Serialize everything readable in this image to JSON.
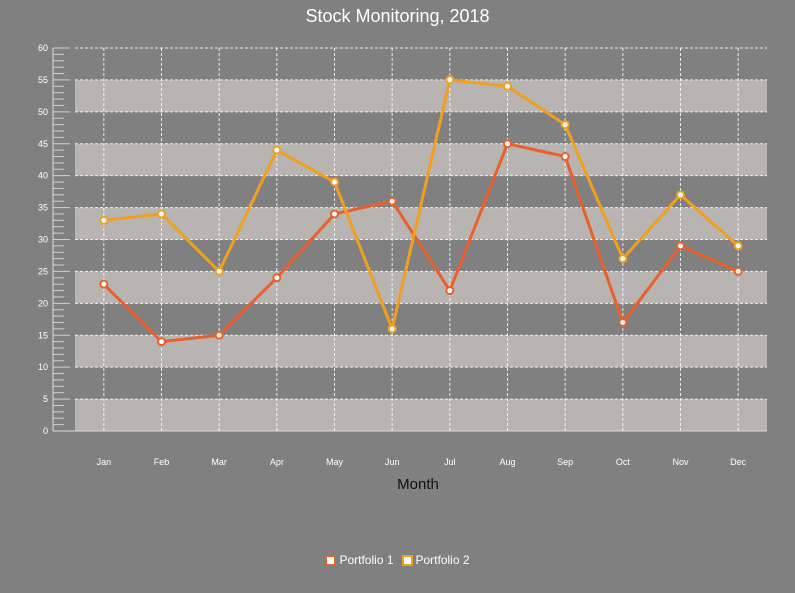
{
  "chart_data": {
    "type": "line",
    "title": "Stock Monitoring, 2018",
    "xlabel": "Month",
    "ylabel": "",
    "categories": [
      "Jan",
      "Feb",
      "Mar",
      "Apr",
      "May",
      "Jun",
      "Jul",
      "Aug",
      "Sep",
      "Oct",
      "Nov",
      "Dec"
    ],
    "ylim": [
      0,
      60
    ],
    "yticks": [
      0,
      5,
      10,
      15,
      20,
      25,
      30,
      35,
      40,
      45,
      50,
      55,
      60
    ],
    "grid": true,
    "legend_position": "bottom",
    "series": [
      {
        "name": "Portfolio 1",
        "color": "#e8602c",
        "values": [
          23,
          14,
          15,
          24,
          34,
          36,
          22,
          45,
          43,
          17,
          29,
          25
        ]
      },
      {
        "name": "Portfolio 2",
        "color": "#f0a020",
        "values": [
          33,
          34,
          25,
          44,
          39,
          16,
          55,
          54,
          48,
          27,
          37,
          29
        ]
      }
    ],
    "colors": {
      "background": "#808080",
      "band": "#b8b4b2",
      "grid": "#ffffff"
    }
  }
}
